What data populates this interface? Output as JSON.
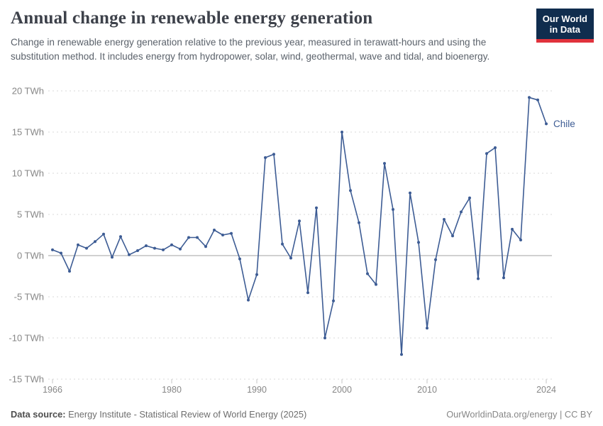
{
  "header": {
    "title": "Annual change in renewable energy generation",
    "subtitle": "Change in renewable energy generation relative to the previous year, measured in terawatt-hours and using the substitution method. It includes energy from hydropower, solar, wind, geothermal, wave and tidal, and bioenergy."
  },
  "logo": {
    "line1": "Our World",
    "line2": "in Data",
    "bg_color": "#102d4e",
    "accent_color": "#e0323c"
  },
  "chart_data": {
    "type": "line",
    "title": "Annual change in renewable energy generation",
    "unit": "TWh",
    "ylim": [
      -15,
      20
    ],
    "grid": "horizontal-dashed",
    "zero_line": true,
    "legend_position": "end-of-line-label",
    "y_ticks": [
      20,
      15,
      10,
      5,
      0,
      -5,
      -10,
      -15
    ],
    "y_tick_labels": [
      "20 TWh",
      "15 TWh",
      "10 TWh",
      "5 TWh",
      "0 TWh",
      "-5 TWh",
      "-10 TWh",
      "-15 TWh"
    ],
    "x_ticks": [
      1966,
      1980,
      1990,
      2000,
      2010,
      2024
    ],
    "x_tick_labels": [
      "1966",
      "1980",
      "1990",
      "2000",
      "2010",
      "2024"
    ],
    "series": [
      {
        "name": "Chile",
        "color": "#3d5c94",
        "years": [
          1966,
          1967,
          1968,
          1969,
          1970,
          1971,
          1972,
          1973,
          1974,
          1975,
          1976,
          1977,
          1978,
          1979,
          1980,
          1981,
          1982,
          1983,
          1984,
          1985,
          1986,
          1987,
          1988,
          1989,
          1990,
          1991,
          1992,
          1993,
          1994,
          1995,
          1996,
          1997,
          1998,
          1999,
          2000,
          2001,
          2002,
          2003,
          2004,
          2005,
          2006,
          2007,
          2008,
          2009,
          2010,
          2011,
          2012,
          2013,
          2014,
          2015,
          2016,
          2017,
          2018,
          2019,
          2020,
          2021,
          2022,
          2023,
          2024
        ],
        "values": [
          0.7,
          0.3,
          -1.9,
          1.3,
          0.9,
          1.7,
          2.6,
          -0.2,
          2.3,
          0.1,
          0.6,
          1.2,
          0.9,
          0.7,
          1.3,
          0.8,
          2.2,
          2.2,
          1.1,
          3.1,
          2.5,
          2.7,
          -0.4,
          -5.4,
          -2.3,
          11.9,
          12.3,
          1.4,
          -0.3,
          4.2,
          -4.5,
          5.8,
          -10.0,
          -5.5,
          15.0,
          7.9,
          4.0,
          -2.2,
          -3.5,
          11.2,
          5.6,
          -12.0,
          7.6,
          1.6,
          -8.8,
          -0.5,
          4.4,
          2.4,
          5.3,
          7.0,
          -2.8,
          12.4,
          13.1,
          -2.7,
          3.2,
          1.9,
          19.2,
          18.9,
          16.0
        ]
      }
    ],
    "colors": {
      "grid": "#d9d9d9",
      "zero_line": "#a3a3a3",
      "axis_label": "#878787"
    }
  },
  "footer": {
    "source_label": "Data source:",
    "source_text": "Energy Institute - Statistical Review of World Energy (2025)",
    "right_text": "OurWorldinData.org/energy | CC BY"
  }
}
